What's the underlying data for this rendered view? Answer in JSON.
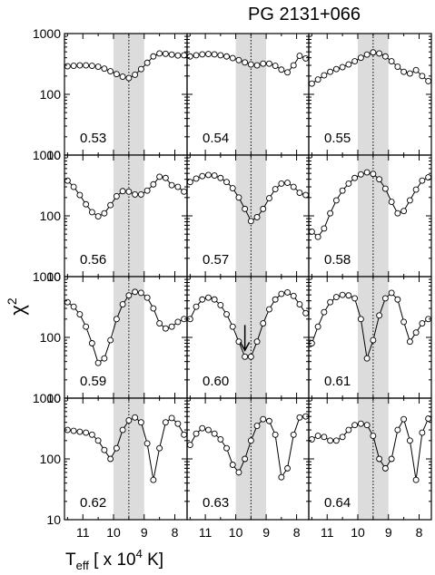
{
  "chart_data": {
    "type": "scatter",
    "title": "PG 2131+066",
    "xlabel_main": "T",
    "xlabel_sub": "eff",
    "xlabel_rest": " [ x 10",
    "xlabel_exp": "4",
    "xlabel_end": " K]",
    "ylabel_main": "χ",
    "ylabel_exp": "2",
    "x_range": [
      11.6,
      7.6
    ],
    "y_scale": "log",
    "y_range": [
      10,
      1000
    ],
    "ytick_labels": [
      "1000",
      "100",
      "10"
    ],
    "xtick_values": [
      11,
      10,
      9,
      8
    ],
    "xtick_labels": [
      "11",
      "10",
      "9",
      "8"
    ],
    "shaded_band": [
      10.0,
      9.0
    ],
    "dotted_line": 9.5,
    "arrow_panel": "0.60",
    "panels": [
      {
        "label": "0.53",
        "x": [
          11.5,
          11.3,
          11.1,
          10.9,
          10.7,
          10.5,
          10.3,
          10.1,
          9.9,
          9.7,
          9.5,
          9.3,
          9.1,
          8.9,
          8.7,
          8.5,
          8.3,
          8.1,
          7.9,
          7.7
        ],
        "y": [
          290,
          295,
          300,
          300,
          295,
          285,
          265,
          240,
          215,
          195,
          185,
          210,
          260,
          330,
          420,
          470,
          465,
          450,
          435,
          440
        ]
      },
      {
        "label": "0.54",
        "x": [
          11.5,
          11.3,
          11.1,
          10.9,
          10.7,
          10.5,
          10.3,
          10.1,
          9.9,
          9.7,
          9.5,
          9.3,
          9.1,
          8.9,
          8.7,
          8.5,
          8.3,
          8.1,
          7.9,
          7.7
        ],
        "y": [
          420,
          440,
          455,
          460,
          455,
          440,
          420,
          395,
          365,
          335,
          310,
          300,
          320,
          320,
          295,
          255,
          230,
          300,
          430,
          390
        ]
      },
      {
        "label": "0.55",
        "x": [
          11.5,
          11.3,
          11.1,
          10.9,
          10.7,
          10.5,
          10.3,
          10.1,
          9.9,
          9.7,
          9.5,
          9.3,
          9.1,
          8.9,
          8.7,
          8.5,
          8.3,
          8.1,
          7.9,
          7.7
        ],
        "y": [
          150,
          175,
          205,
          235,
          260,
          280,
          310,
          350,
          400,
          450,
          490,
          470,
          420,
          350,
          285,
          235,
          220,
          250,
          200,
          165
        ]
      },
      {
        "label": "0.56",
        "x": [
          11.5,
          11.3,
          11.1,
          10.9,
          10.7,
          10.5,
          10.3,
          10.1,
          9.9,
          9.7,
          9.5,
          9.3,
          9.1,
          8.9,
          8.7,
          8.5,
          8.3,
          8.1,
          7.9,
          7.7
        ],
        "y": [
          380,
          300,
          220,
          155,
          115,
          98,
          110,
          150,
          210,
          255,
          250,
          225,
          225,
          260,
          330,
          440,
          420,
          320,
          300,
          250
        ]
      },
      {
        "label": "0.57",
        "x": [
          11.5,
          11.3,
          11.1,
          10.9,
          10.7,
          10.5,
          10.3,
          10.1,
          9.9,
          9.7,
          9.5,
          9.3,
          9.1,
          8.9,
          8.7,
          8.5,
          8.3,
          8.1,
          7.9,
          7.7
        ],
        "y": [
          360,
          410,
          450,
          470,
          460,
          420,
          360,
          285,
          200,
          130,
          82,
          95,
          130,
          195,
          275,
          340,
          350,
          300,
          240,
          220
        ]
      },
      {
        "label": "0.58",
        "x": [
          11.5,
          11.3,
          11.1,
          10.9,
          10.7,
          10.5,
          10.3,
          10.1,
          9.9,
          9.7,
          9.5,
          9.3,
          9.1,
          8.9,
          8.7,
          8.5,
          8.3,
          8.1,
          7.9,
          7.7
        ],
        "y": [
          55,
          45,
          62,
          110,
          180,
          260,
          340,
          420,
          480,
          520,
          490,
          400,
          280,
          170,
          110,
          120,
          180,
          270,
          380,
          430
        ]
      },
      {
        "label": "0.59",
        "x": [
          11.5,
          11.3,
          11.1,
          10.9,
          10.7,
          10.5,
          10.3,
          10.1,
          9.9,
          9.7,
          9.5,
          9.3,
          9.1,
          8.9,
          8.7,
          8.5,
          8.3,
          8.1,
          7.9,
          7.7
        ],
        "y": [
          380,
          320,
          240,
          150,
          80,
          38,
          45,
          90,
          200,
          350,
          490,
          560,
          540,
          450,
          300,
          170,
          140,
          150,
          180,
          200
        ]
      },
      {
        "label": "0.60",
        "x": [
          11.5,
          11.3,
          11.1,
          10.9,
          10.7,
          10.5,
          10.3,
          10.1,
          9.9,
          9.7,
          9.5,
          9.3,
          9.1,
          8.9,
          8.7,
          8.5,
          8.3,
          8.1,
          7.9,
          7.7
        ],
        "y": [
          200,
          320,
          420,
          450,
          420,
          340,
          240,
          150,
          85,
          48,
          48,
          85,
          170,
          290,
          420,
          520,
          550,
          480,
          350,
          250
        ]
      },
      {
        "label": "0.61",
        "x": [
          11.5,
          11.3,
          11.1,
          10.9,
          10.7,
          10.5,
          10.3,
          10.1,
          9.9,
          9.7,
          9.5,
          9.3,
          9.1,
          8.9,
          8.7,
          8.5,
          8.3,
          8.1,
          7.9,
          7.7
        ],
        "y": [
          80,
          150,
          260,
          380,
          460,
          500,
          490,
          440,
          200,
          45,
          90,
          230,
          440,
          540,
          420,
          180,
          85,
          120,
          170,
          200
        ]
      },
      {
        "label": "0.62",
        "x": [
          11.5,
          11.3,
          11.1,
          10.9,
          10.7,
          10.5,
          10.3,
          10.1,
          9.9,
          9.7,
          9.5,
          9.3,
          9.1,
          8.9,
          8.7,
          8.5,
          8.3,
          8.1,
          7.9,
          7.7
        ],
        "y": [
          300,
          290,
          280,
          270,
          250,
          200,
          140,
          100,
          150,
          300,
          430,
          480,
          400,
          180,
          45,
          150,
          400,
          470,
          380,
          250
        ]
      },
      {
        "label": "0.63",
        "x": [
          11.5,
          11.3,
          11.1,
          10.9,
          10.7,
          10.5,
          10.3,
          10.1,
          9.9,
          9.7,
          9.5,
          9.3,
          9.1,
          8.9,
          8.7,
          8.5,
          8.3,
          8.1,
          7.9,
          7.7
        ],
        "y": [
          170,
          260,
          320,
          300,
          260,
          210,
          150,
          80,
          60,
          100,
          200,
          350,
          450,
          420,
          250,
          50,
          70,
          250,
          480,
          500
        ]
      },
      {
        "label": "0.64",
        "x": [
          11.5,
          11.3,
          11.1,
          10.9,
          10.7,
          10.5,
          10.3,
          10.1,
          9.9,
          9.7,
          9.5,
          9.3,
          9.1,
          8.9,
          8.7,
          8.5,
          8.3,
          8.1,
          7.9,
          7.7
        ],
        "y": [
          210,
          240,
          230,
          200,
          200,
          230,
          300,
          360,
          380,
          360,
          240,
          100,
          70,
          100,
          300,
          450,
          200,
          45,
          270,
          460
        ]
      }
    ]
  }
}
